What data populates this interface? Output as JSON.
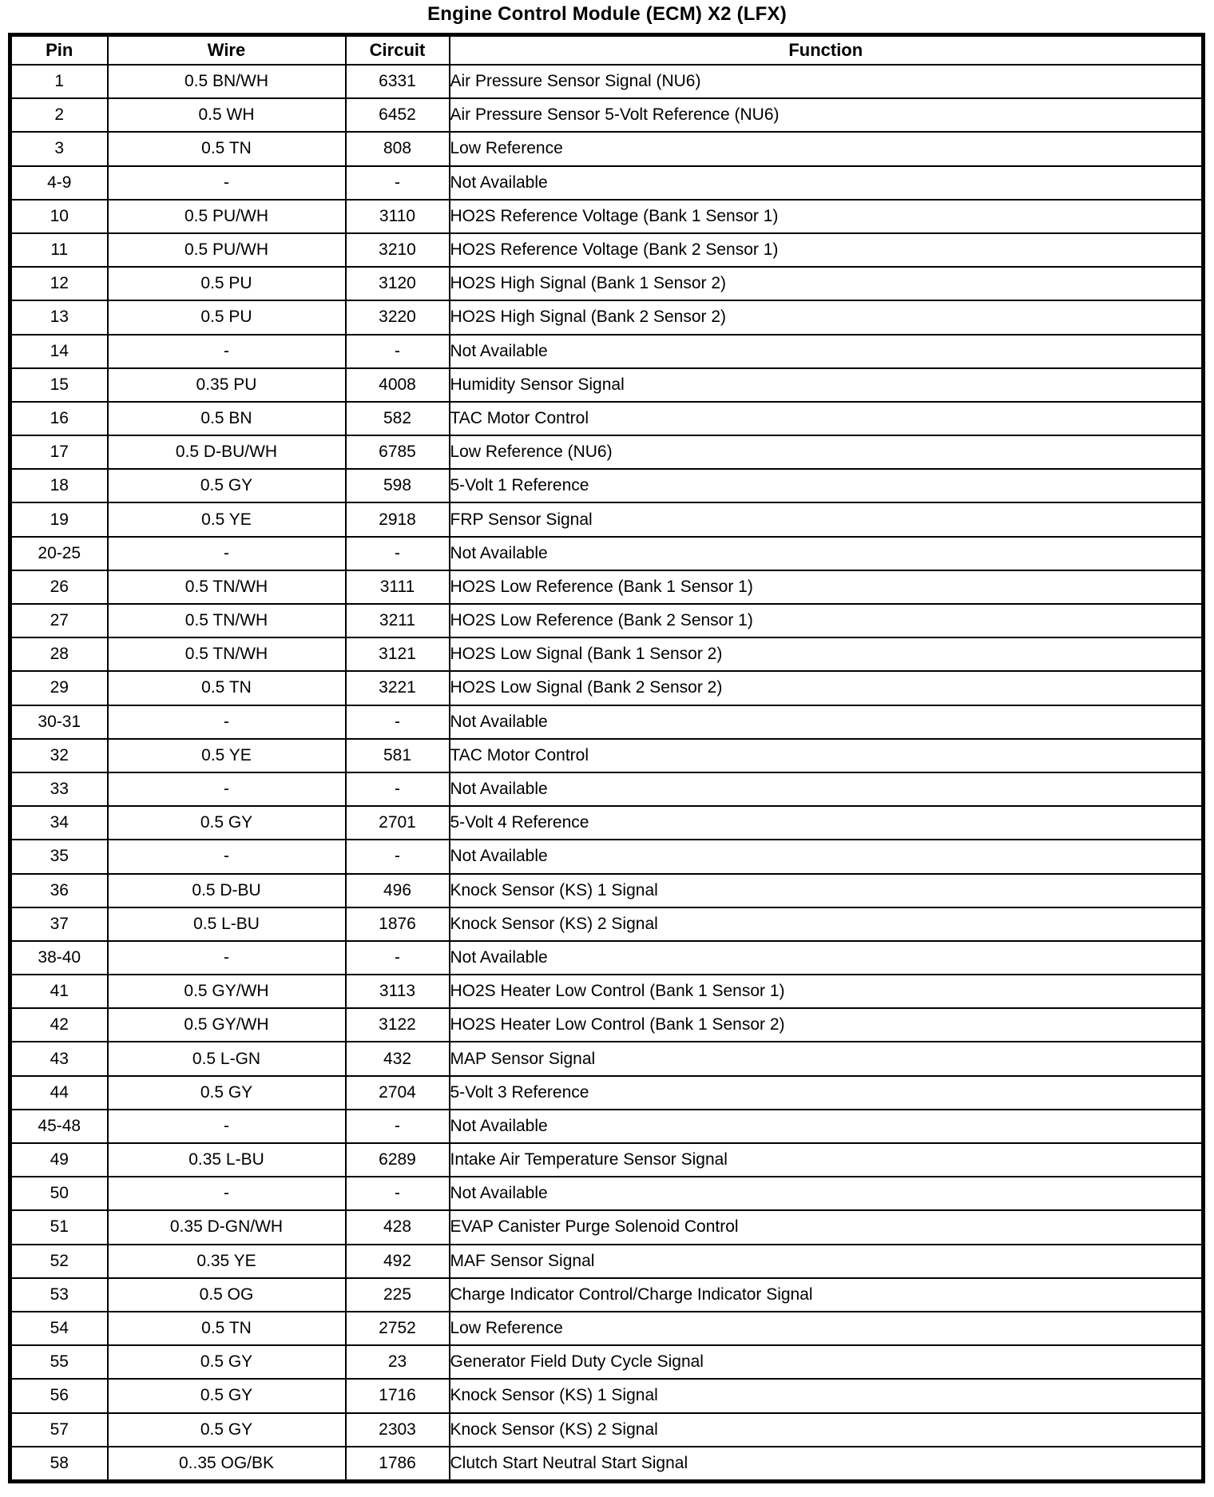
{
  "page": {
    "title": "Engine Control Module (ECM) X2 (LFX)"
  },
  "colors": {
    "text": "#000000",
    "border": "#000000",
    "background": "#ffffff"
  },
  "table": {
    "headers": {
      "pin": "Pin",
      "wire": "Wire",
      "circuit": "Circuit",
      "function": "Function"
    },
    "rows": [
      {
        "pin": "1",
        "wire": "0.5 BN/WH",
        "circuit": "6331",
        "function": "Air Pressure Sensor Signal (NU6)"
      },
      {
        "pin": "2",
        "wire": "0.5 WH",
        "circuit": "6452",
        "function": "Air Pressure Sensor 5-Volt Reference (NU6)"
      },
      {
        "pin": "3",
        "wire": "0.5 TN",
        "circuit": "808",
        "function": "Low Reference"
      },
      {
        "pin": "4-9",
        "wire": "-",
        "circuit": "-",
        "function": "Not Available"
      },
      {
        "pin": "10",
        "wire": "0.5 PU/WH",
        "circuit": "3110",
        "function": "HO2S Reference Voltage (Bank 1 Sensor 1)"
      },
      {
        "pin": "11",
        "wire": "0.5 PU/WH",
        "circuit": "3210",
        "function": "HO2S Reference Voltage (Bank 2 Sensor 1)"
      },
      {
        "pin": "12",
        "wire": "0.5 PU",
        "circuit": "3120",
        "function": "HO2S High Signal (Bank 1 Sensor 2)"
      },
      {
        "pin": "13",
        "wire": "0.5 PU",
        "circuit": "3220",
        "function": "HO2S High Signal (Bank 2 Sensor 2)"
      },
      {
        "pin": "14",
        "wire": "-",
        "circuit": "-",
        "function": "Not Available"
      },
      {
        "pin": "15",
        "wire": "0.35 PU",
        "circuit": "4008",
        "function": "Humidity Sensor Signal"
      },
      {
        "pin": "16",
        "wire": "0.5 BN",
        "circuit": "582",
        "function": "TAC Motor Control"
      },
      {
        "pin": "17",
        "wire": "0.5 D-BU/WH",
        "circuit": "6785",
        "function": "Low Reference (NU6)"
      },
      {
        "pin": "18",
        "wire": "0.5 GY",
        "circuit": "598",
        "function": "5-Volt 1 Reference"
      },
      {
        "pin": "19",
        "wire": "0.5 YE",
        "circuit": "2918",
        "function": "FRP Sensor Signal"
      },
      {
        "pin": "20-25",
        "wire": "-",
        "circuit": "-",
        "function": "Not Available"
      },
      {
        "pin": "26",
        "wire": "0.5 TN/WH",
        "circuit": "3111",
        "function": "HO2S Low Reference (Bank 1 Sensor 1)"
      },
      {
        "pin": "27",
        "wire": "0.5 TN/WH",
        "circuit": "3211",
        "function": "HO2S Low Reference (Bank 2 Sensor 1)"
      },
      {
        "pin": "28",
        "wire": "0.5 TN/WH",
        "circuit": "3121",
        "function": "HO2S Low Signal (Bank 1 Sensor 2)"
      },
      {
        "pin": "29",
        "wire": "0.5 TN",
        "circuit": "3221",
        "function": "HO2S Low Signal (Bank 2 Sensor 2)"
      },
      {
        "pin": "30-31",
        "wire": "-",
        "circuit": "-",
        "function": "Not Available"
      },
      {
        "pin": "32",
        "wire": "0.5 YE",
        "circuit": "581",
        "function": "TAC Motor Control"
      },
      {
        "pin": "33",
        "wire": "-",
        "circuit": "-",
        "function": "Not Available"
      },
      {
        "pin": "34",
        "wire": "0.5 GY",
        "circuit": "2701",
        "function": "5-Volt 4 Reference"
      },
      {
        "pin": "35",
        "wire": "-",
        "circuit": "-",
        "function": "Not Available"
      },
      {
        "pin": "36",
        "wire": "0.5 D-BU",
        "circuit": "496",
        "function": "Knock Sensor (KS) 1 Signal"
      },
      {
        "pin": "37",
        "wire": "0.5 L-BU",
        "circuit": "1876",
        "function": "Knock Sensor (KS) 2 Signal"
      },
      {
        "pin": "38-40",
        "wire": "-",
        "circuit": "-",
        "function": "Not Available"
      },
      {
        "pin": "41",
        "wire": "0.5 GY/WH",
        "circuit": "3113",
        "function": "HO2S Heater Low Control (Bank 1 Sensor 1)"
      },
      {
        "pin": "42",
        "wire": "0.5 GY/WH",
        "circuit": "3122",
        "function": "HO2S Heater Low Control (Bank 1 Sensor 2)"
      },
      {
        "pin": "43",
        "wire": "0.5 L-GN",
        "circuit": "432",
        "function": "MAP Sensor Signal"
      },
      {
        "pin": "44",
        "wire": "0.5 GY",
        "circuit": "2704",
        "function": "5-Volt 3 Reference"
      },
      {
        "pin": "45-48",
        "wire": "-",
        "circuit": "-",
        "function": "Not Available"
      },
      {
        "pin": "49",
        "wire": "0.35 L-BU",
        "circuit": "6289",
        "function": "Intake Air Temperature Sensor Signal"
      },
      {
        "pin": "50",
        "wire": "-",
        "circuit": "-",
        "function": "Not Available"
      },
      {
        "pin": "51",
        "wire": "0.35 D-GN/WH",
        "circuit": "428",
        "function": "EVAP Canister Purge Solenoid Control"
      },
      {
        "pin": "52",
        "wire": "0.35 YE",
        "circuit": "492",
        "function": "MAF Sensor Signal"
      },
      {
        "pin": "53",
        "wire": "0.5 OG",
        "circuit": "225",
        "function": "Charge Indicator Control/Charge Indicator Signal"
      },
      {
        "pin": "54",
        "wire": "0.5 TN",
        "circuit": "2752",
        "function": "Low Reference"
      },
      {
        "pin": "55",
        "wire": "0.5 GY",
        "circuit": "23",
        "function": "Generator Field Duty Cycle Signal"
      },
      {
        "pin": "56",
        "wire": "0.5 GY",
        "circuit": "1716",
        "function": "Knock Sensor (KS) 1 Signal"
      },
      {
        "pin": "57",
        "wire": "0.5 GY",
        "circuit": "2303",
        "function": "Knock Sensor (KS) 2 Signal"
      },
      {
        "pin": "58",
        "wire": "0..35 OG/BK",
        "circuit": "1786",
        "function": "Clutch Start Neutral Start Signal"
      }
    ]
  }
}
